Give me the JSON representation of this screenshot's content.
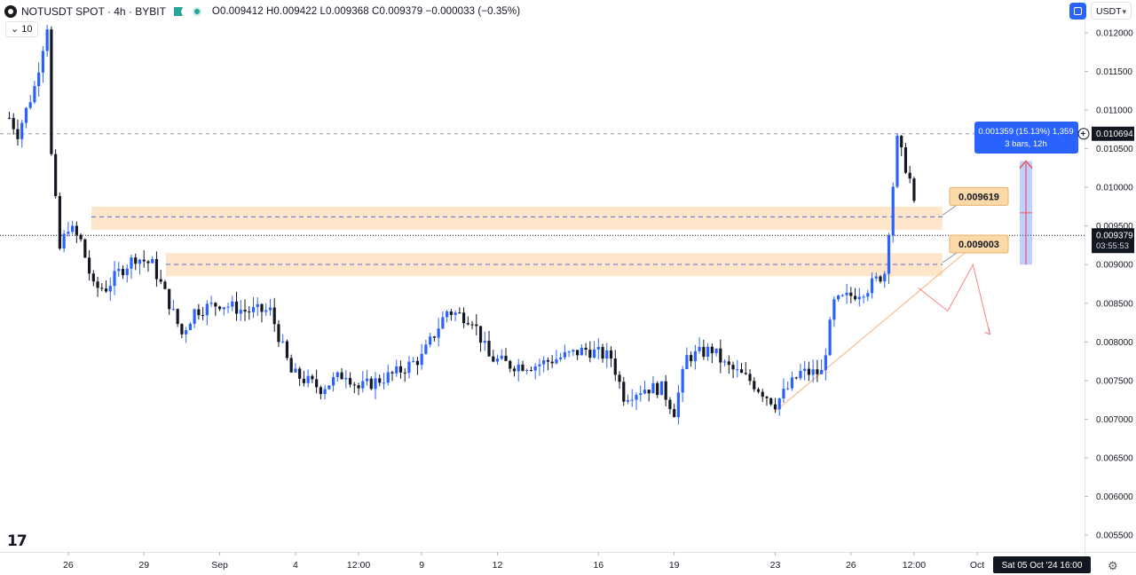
{
  "header": {
    "symbol": "NOTUSDT SPOT · 4h · BYBIT",
    "ohlc": "O0.009412 H0.009422 L0.009368 C0.009379 −0.000033 (−0.35%)"
  },
  "indicator_chip": {
    "label": "10"
  },
  "currency": {
    "label": "USDT"
  },
  "icons": {
    "logo": "tradingview-logo-icon",
    "settings": "gear-icon",
    "layout": "layout-icon"
  },
  "colors": {
    "up": "#2962ff",
    "down": "#131722",
    "zone": "#fde3c4",
    "zone_label": "#fbd9a8",
    "measure": "#2962ff"
  },
  "chart_data": {
    "type": "candlestick",
    "symbol": "NOTUSDT",
    "timeframe": "4h",
    "exchange": "BYBIT",
    "y_axis": {
      "ticks": [
        0.0055,
        0.006,
        0.0065,
        0.007,
        0.0075,
        0.008,
        0.0085,
        0.009,
        0.0095,
        0.01,
        0.0105,
        0.011,
        0.0115,
        0.012
      ],
      "tick_labels": [
        "0.005500",
        "0.006000",
        "0.006500",
        "0.007000",
        "0.007500",
        "0.008000",
        "0.008500",
        "0.009000",
        "0.009500",
        "0.010000",
        "0.010500",
        "0.011000",
        "0.011500",
        "0.012000"
      ]
    },
    "x_axis": {
      "tick_labels": [
        "26",
        "29",
        "Sep",
        "4",
        "12:00",
        "9",
        "12",
        "16",
        "19",
        "23",
        "26",
        "12:00",
        "Oct"
      ],
      "tick_dates": [
        "2024-08-26",
        "2024-08-29",
        "2024-09-01",
        "2024-09-04",
        "2024-09-06 12:00",
        "2024-09-09",
        "2024-09-12",
        "2024-09-16",
        "2024-09-19",
        "2024-09-23",
        "2024-09-26",
        "2024-09-28 12:00",
        "2024-10-01"
      ],
      "crosshair_label": "Sat 05 Oct '24   16:00"
    },
    "price_path": [
      [
        "2024-08-23 16:00",
        0.0109
      ],
      [
        "2024-08-24 00:00",
        0.0107
      ],
      [
        "2024-08-24 16:00",
        0.0113
      ],
      [
        "2024-08-25 04:00",
        0.0121
      ],
      [
        "2024-08-25 08:00",
        0.0104
      ],
      [
        "2024-08-25 16:00",
        0.0092
      ],
      [
        "2024-08-26 00:00",
        0.0095
      ],
      [
        "2024-08-26 12:00",
        0.0093
      ],
      [
        "2024-08-27 00:00",
        0.0087
      ],
      [
        "2024-08-27 12:00",
        0.0087
      ],
      [
        "2024-08-28 00:00",
        0.0089
      ],
      [
        "2024-08-28 16:00",
        0.0091
      ],
      [
        "2024-08-29 08:00",
        0.009
      ],
      [
        "2024-08-30 00:00",
        0.0085
      ],
      [
        "2024-08-30 12:00",
        0.0081
      ],
      [
        "2024-08-31 00:00",
        0.0084
      ],
      [
        "2024-09-01 00:00",
        0.0085
      ],
      [
        "2024-09-02 00:00",
        0.0084
      ],
      [
        "2024-09-03 00:00",
        0.0084
      ],
      [
        "2024-09-03 20:00",
        0.0076
      ],
      [
        "2024-09-05 00:00",
        0.0074
      ],
      [
        "2024-09-06 00:00",
        0.0076
      ],
      [
        "2024-09-06 12:00",
        0.0074
      ],
      [
        "2024-09-08 00:00",
        0.0076
      ],
      [
        "2024-09-09 00:00",
        0.0078
      ],
      [
        "2024-09-10 00:00",
        0.0084
      ],
      [
        "2024-09-11 00:00",
        0.0083
      ],
      [
        "2024-09-11 16:00",
        0.0078
      ],
      [
        "2024-09-12 12:00",
        0.0077
      ],
      [
        "2024-09-13 12:00",
        0.0077
      ],
      [
        "2024-09-14 12:00",
        0.0078
      ],
      [
        "2024-09-15 12:00",
        0.0079
      ],
      [
        "2024-09-16 12:00",
        0.0078
      ],
      [
        "2024-09-17 00:00",
        0.0073
      ],
      [
        "2024-09-17 20:00",
        0.0074
      ],
      [
        "2024-09-18 12:00",
        0.0074
      ],
      [
        "2024-09-19 00:00",
        0.0071
      ],
      [
        "2024-09-19 12:00",
        0.0078
      ],
      [
        "2024-09-20 12:00",
        0.0079
      ],
      [
        "2024-09-21 00:00",
        0.0077
      ],
      [
        "2024-09-22 00:00",
        0.0075
      ],
      [
        "2024-09-23 00:00",
        0.0072
      ],
      [
        "2024-09-24 00:00",
        0.0076
      ],
      [
        "2024-09-24 20:00",
        0.0076
      ],
      [
        "2024-09-25 08:00",
        0.0085
      ],
      [
        "2024-09-26 00:00",
        0.0086
      ],
      [
        "2024-09-26 16:00",
        0.0087
      ],
      [
        "2024-09-27 08:00",
        0.0089
      ],
      [
        "2024-09-27 20:00",
        0.0106
      ],
      [
        "2024-09-28 08:00",
        0.0101
      ],
      [
        "2024-09-28 16:00",
        0.0094
      ]
    ],
    "last_price": {
      "value": 0.009379,
      "label": "0.009379",
      "countdown": "03:55:53"
    },
    "annotations": {
      "resistance_zone": {
        "low": 0.00945,
        "high": 0.00975,
        "level": 0.009619,
        "label": "0.009619"
      },
      "support_zone": {
        "low": 0.00885,
        "high": 0.00915,
        "level": 0.009003,
        "label": "0.009003"
      },
      "high_line": {
        "value": 0.010694,
        "label": "0.010694"
      },
      "measure": {
        "line1": "0.001359 (15.13%) 1,359",
        "line2": "3 bars, 12h",
        "from": 0.009,
        "to": 0.01034
      },
      "trendline": {
        "from": [
          "2024-09-23 00:00",
          0.0071
        ],
        "to": [
          "2024-09-30 12:00",
          0.00915
        ]
      },
      "projection": [
        [
          "2024-09-28 16:00",
          0.0087
        ],
        [
          "2024-09-29 20:00",
          0.0084
        ],
        [
          "2024-09-30 20:00",
          0.009
        ],
        [
          "2024-10-01 12:00",
          0.0081
        ]
      ]
    }
  }
}
